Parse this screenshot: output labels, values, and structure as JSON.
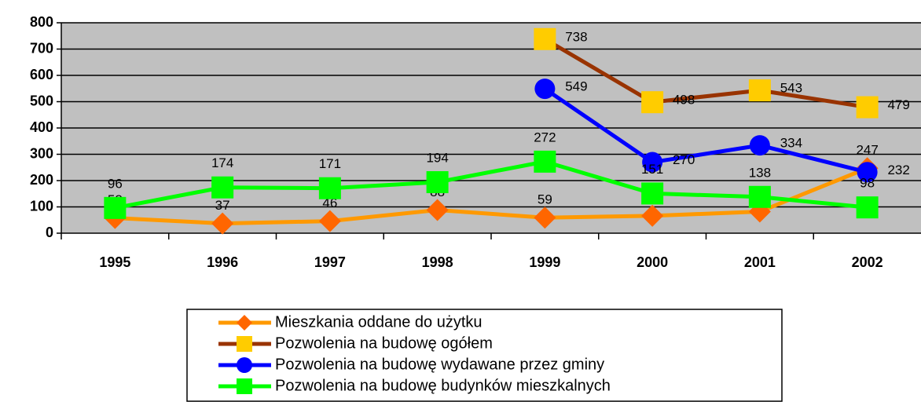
{
  "chart_data": {
    "type": "line",
    "categories": [
      "1995",
      "1996",
      "1997",
      "1998",
      "1999",
      "2000",
      "2001",
      "2002"
    ],
    "series": [
      {
        "name": "Mieszkania oddane do użytku",
        "color": "#FF9900",
        "marker_color": "#FF6600",
        "marker": "diamond",
        "values": [
          58,
          37,
          46,
          88,
          59,
          66,
          82,
          247
        ]
      },
      {
        "name": "Pozwolenia na budowę ogółem",
        "color": "#993300",
        "marker_color": "#FFCC00",
        "marker": "square",
        "values": [
          null,
          null,
          null,
          null,
          738,
          498,
          543,
          479
        ]
      },
      {
        "name": "Pozwolenia na budowę wydawane przez gminy",
        "color": "#0000FF",
        "marker_color": "#0000FF",
        "marker": "circle",
        "values": [
          null,
          null,
          null,
          null,
          549,
          270,
          334,
          232
        ]
      },
      {
        "name": "Pozwolenia na budowę budynków mieszkalnych",
        "color": "#00FF00",
        "marker_color": "#00FF00",
        "marker": "square",
        "values": [
          96,
          174,
          171,
          194,
          272,
          151,
          138,
          98
        ]
      }
    ],
    "ylim": [
      0,
      800
    ],
    "yticks": [
      0,
      100,
      200,
      300,
      400,
      500,
      600,
      700,
      800
    ],
    "grid": true,
    "legend": "bottom"
  }
}
